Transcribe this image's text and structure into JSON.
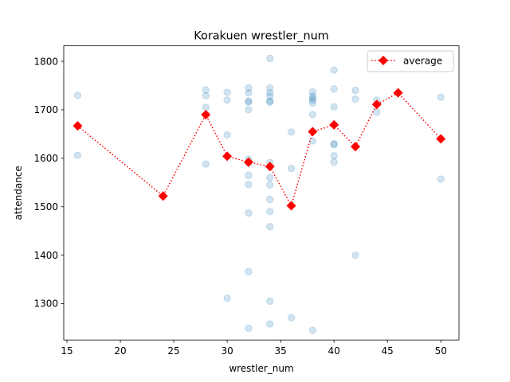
{
  "chart_data": {
    "type": "scatter",
    "title": "Korakuen wrestler_num",
    "xlabel": "wrestler_num",
    "ylabel": "attendance",
    "xlim": [
      14.7,
      51.7
    ],
    "ylim": [
      1225,
      1832
    ],
    "xticks": [
      15,
      20,
      25,
      30,
      35,
      40,
      45,
      50
    ],
    "yticks": [
      1300,
      1400,
      1500,
      1600,
      1700,
      1800
    ],
    "grid": false,
    "legend": {
      "position": "top-right",
      "entries": [
        "average"
      ]
    },
    "colors": {
      "scatter": "#1f77b4",
      "average": "#ff0000"
    },
    "series": [
      {
        "kind": "scatter",
        "points": [
          [
            16,
            1730
          ],
          [
            16,
            1606
          ],
          [
            28,
            1741
          ],
          [
            28,
            1729
          ],
          [
            28,
            1705
          ],
          [
            28,
            1588
          ],
          [
            30,
            1736
          ],
          [
            30,
            1720
          ],
          [
            30,
            1648
          ],
          [
            30,
            1311
          ],
          [
            32,
            1745
          ],
          [
            32,
            1735
          ],
          [
            32,
            1718
          ],
          [
            32,
            1716
          ],
          [
            32,
            1700
          ],
          [
            32,
            1598
          ],
          [
            32,
            1590
          ],
          [
            32,
            1565
          ],
          [
            32,
            1546
          ],
          [
            32,
            1487
          ],
          [
            32,
            1366
          ],
          [
            32,
            1249
          ],
          [
            34,
            1806
          ],
          [
            34,
            1745
          ],
          [
            34,
            1735
          ],
          [
            34,
            1728
          ],
          [
            34,
            1718
          ],
          [
            34,
            1716
          ],
          [
            34,
            1591
          ],
          [
            34,
            1560
          ],
          [
            34,
            1545
          ],
          [
            34,
            1515
          ],
          [
            34,
            1490
          ],
          [
            34,
            1459
          ],
          [
            34,
            1305
          ],
          [
            34,
            1258
          ],
          [
            36,
            1654
          ],
          [
            36,
            1579
          ],
          [
            36,
            1271
          ],
          [
            38,
            1737
          ],
          [
            38,
            1728
          ],
          [
            38,
            1724
          ],
          [
            38,
            1720
          ],
          [
            38,
            1714
          ],
          [
            38,
            1690
          ],
          [
            38,
            1636
          ],
          [
            38,
            1245
          ],
          [
            40,
            1782
          ],
          [
            40,
            1743
          ],
          [
            40,
            1706
          ],
          [
            40,
            1630
          ],
          [
            40,
            1628
          ],
          [
            40,
            1605
          ],
          [
            40,
            1592
          ],
          [
            42,
            1740
          ],
          [
            42,
            1722
          ],
          [
            42,
            1400
          ],
          [
            44,
            1720
          ],
          [
            44,
            1695
          ],
          [
            50,
            1726
          ],
          [
            50,
            1557
          ]
        ]
      },
      {
        "name": "average",
        "kind": "line",
        "points": [
          [
            16,
            1667
          ],
          [
            24,
            1522
          ],
          [
            28,
            1690
          ],
          [
            30,
            1604
          ],
          [
            32,
            1592
          ],
          [
            34,
            1583
          ],
          [
            36,
            1502
          ],
          [
            38,
            1655
          ],
          [
            40,
            1669
          ],
          [
            42,
            1624
          ],
          [
            44,
            1711
          ],
          [
            46,
            1735
          ],
          [
            50,
            1640
          ]
        ]
      }
    ]
  }
}
